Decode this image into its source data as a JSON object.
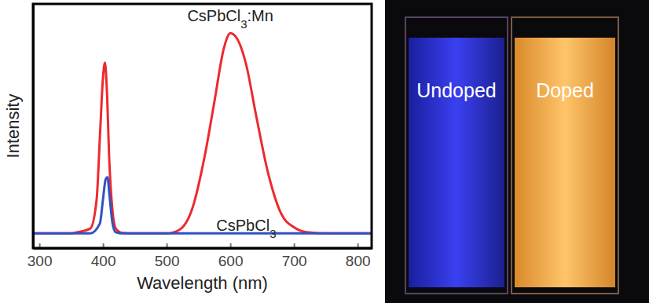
{
  "chart_data": {
    "type": "line",
    "x_label": "Wavelength (nm)",
    "y_label": "Intensity",
    "xlim": [
      290,
      822
    ],
    "xticks": [
      300,
      400,
      500,
      600,
      700,
      800
    ],
    "ylim": [
      0,
      1
    ],
    "tick_labels": "x",
    "grid": false,
    "series": [
      {
        "color": "#ec2a2e",
        "x": [
          290,
          350,
          360,
          380,
          390,
          395,
          400,
          403,
          406,
          410,
          415,
          420,
          430,
          450,
          500,
          520,
          540,
          560,
          575,
          590,
          600,
          610,
          625,
          640,
          660,
          680,
          700,
          720,
          750,
          822
        ],
        "values": [
          0.06,
          0.06,
          0.065,
          0.08,
          0.2,
          0.45,
          0.7,
          0.76,
          0.65,
          0.35,
          0.15,
          0.08,
          0.062,
          0.06,
          0.06,
          0.075,
          0.16,
          0.38,
          0.6,
          0.82,
          0.88,
          0.86,
          0.75,
          0.55,
          0.3,
          0.14,
          0.085,
          0.065,
          0.06,
          0.06
        ]
      },
      {
        "color": "#3152c4",
        "x": [
          290,
          380,
          395,
          400,
          404,
          407,
          410,
          415,
          420,
          430,
          822
        ],
        "values": [
          0.06,
          0.06,
          0.1,
          0.2,
          0.28,
          0.29,
          0.22,
          0.1,
          0.065,
          0.06,
          0.06
        ]
      }
    ],
    "annotations": [
      {
        "text": "CsPbCl3:Mn",
        "x": 600,
        "y": 0.93
      },
      {
        "text": "CsPbCl3",
        "x": 625,
        "y": 0.07
      }
    ],
    "photo_labels": [
      "Undoped",
      "Doped"
    ]
  }
}
